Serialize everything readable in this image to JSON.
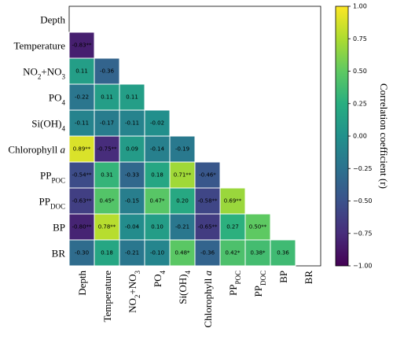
{
  "chart_data": {
    "type": "heatmap",
    "colormap": "viridis",
    "labels": [
      [
        {
          "t": "Depth"
        }
      ],
      [
        {
          "t": "Temperature"
        }
      ],
      [
        {
          "t": "NO"
        },
        {
          "t": "2",
          "sub": true
        },
        {
          "t": "+NO"
        },
        {
          "t": "3",
          "sub": true
        }
      ],
      [
        {
          "t": "PO"
        },
        {
          "t": "4",
          "sub": true
        }
      ],
      [
        {
          "t": "Si(OH)"
        },
        {
          "t": "4",
          "sub": true
        }
      ],
      [
        {
          "t": "Chlorophyll "
        },
        {
          "t": "a",
          "italic": true
        }
      ],
      [
        {
          "t": "PP"
        },
        {
          "t": "POC",
          "sub": true
        }
      ],
      [
        {
          "t": "PP"
        },
        {
          "t": "DOC",
          "sub": true
        }
      ],
      [
        {
          "t": "BP"
        }
      ],
      [
        {
          "t": "BR"
        }
      ]
    ],
    "values": [
      [
        null,
        null,
        null,
        null,
        null,
        null,
        null,
        null,
        null,
        null
      ],
      [
        -0.83,
        null,
        null,
        null,
        null,
        null,
        null,
        null,
        null,
        null
      ],
      [
        0.11,
        -0.36,
        null,
        null,
        null,
        null,
        null,
        null,
        null,
        null
      ],
      [
        -0.22,
        0.11,
        0.11,
        null,
        null,
        null,
        null,
        null,
        null,
        null
      ],
      [
        -0.11,
        -0.17,
        -0.11,
        -0.02,
        null,
        null,
        null,
        null,
        null,
        null
      ],
      [
        0.89,
        -0.75,
        0.09,
        -0.14,
        -0.19,
        null,
        null,
        null,
        null,
        null
      ],
      [
        -0.54,
        0.31,
        -0.33,
        0.18,
        0.71,
        -0.46,
        null,
        null,
        null,
        null
      ],
      [
        -0.63,
        0.45,
        -0.15,
        0.47,
        0.2,
        -0.58,
        0.69,
        null,
        null,
        null
      ],
      [
        -0.8,
        0.78,
        -0.04,
        0.1,
        -0.21,
        -0.65,
        0.27,
        0.5,
        null,
        null
      ],
      [
        -0.3,
        0.18,
        -0.21,
        -0.1,
        0.48,
        -0.36,
        0.42,
        0.38,
        0.36,
        null
      ]
    ],
    "value_labels": [
      [
        null,
        null,
        null,
        null,
        null,
        null,
        null,
        null,
        null,
        null
      ],
      [
        "-0.83**",
        null,
        null,
        null,
        null,
        null,
        null,
        null,
        null,
        null
      ],
      [
        "0.11",
        "-0.36",
        null,
        null,
        null,
        null,
        null,
        null,
        null,
        null
      ],
      [
        "-0.22",
        "0.11",
        "0.11",
        null,
        null,
        null,
        null,
        null,
        null,
        null
      ],
      [
        "-0.11",
        "-0.17",
        "-0.11",
        "-0.02",
        null,
        null,
        null,
        null,
        null,
        null
      ],
      [
        "0.89**",
        "-0.75**",
        "0.09",
        "-0.14",
        "-0.19",
        null,
        null,
        null,
        null,
        null
      ],
      [
        "-0.54**",
        "0.31",
        "-0.33",
        "0.18",
        "0.71**",
        "-0.46*",
        null,
        null,
        null,
        null
      ],
      [
        "-0.63**",
        "0.45*",
        "-0.15",
        "0.47*",
        "0.20",
        "-0.58**",
        "0.69**",
        null,
        null,
        null
      ],
      [
        "-0.80**",
        "0.78**",
        "-0.04",
        "0.10",
        "-0.21",
        "-0.65**",
        "0.27",
        "0.50**",
        null,
        null
      ],
      [
        "-0.30",
        "0.18",
        "-0.21",
        "-0.10",
        "0.48*",
        "-0.36",
        "0.42*",
        "0.38*",
        "0.36",
        null
      ]
    ],
    "clim": [
      -1,
      1
    ],
    "cticks": [
      {
        "value": 1,
        "label": "1.00"
      },
      {
        "value": 0.75,
        "label": "0.75"
      },
      {
        "value": 0.5,
        "label": "0.50"
      },
      {
        "value": 0.25,
        "label": "0.25"
      },
      {
        "value": 0,
        "label": "0.00"
      },
      {
        "value": -0.25,
        "label": "−0.25"
      },
      {
        "value": -0.5,
        "label": "−0.50"
      },
      {
        "value": -0.75,
        "label": "−0.75"
      },
      {
        "value": -1,
        "label": "−1.00"
      }
    ],
    "colorbar_label": "Correlation coefficient (r)"
  }
}
